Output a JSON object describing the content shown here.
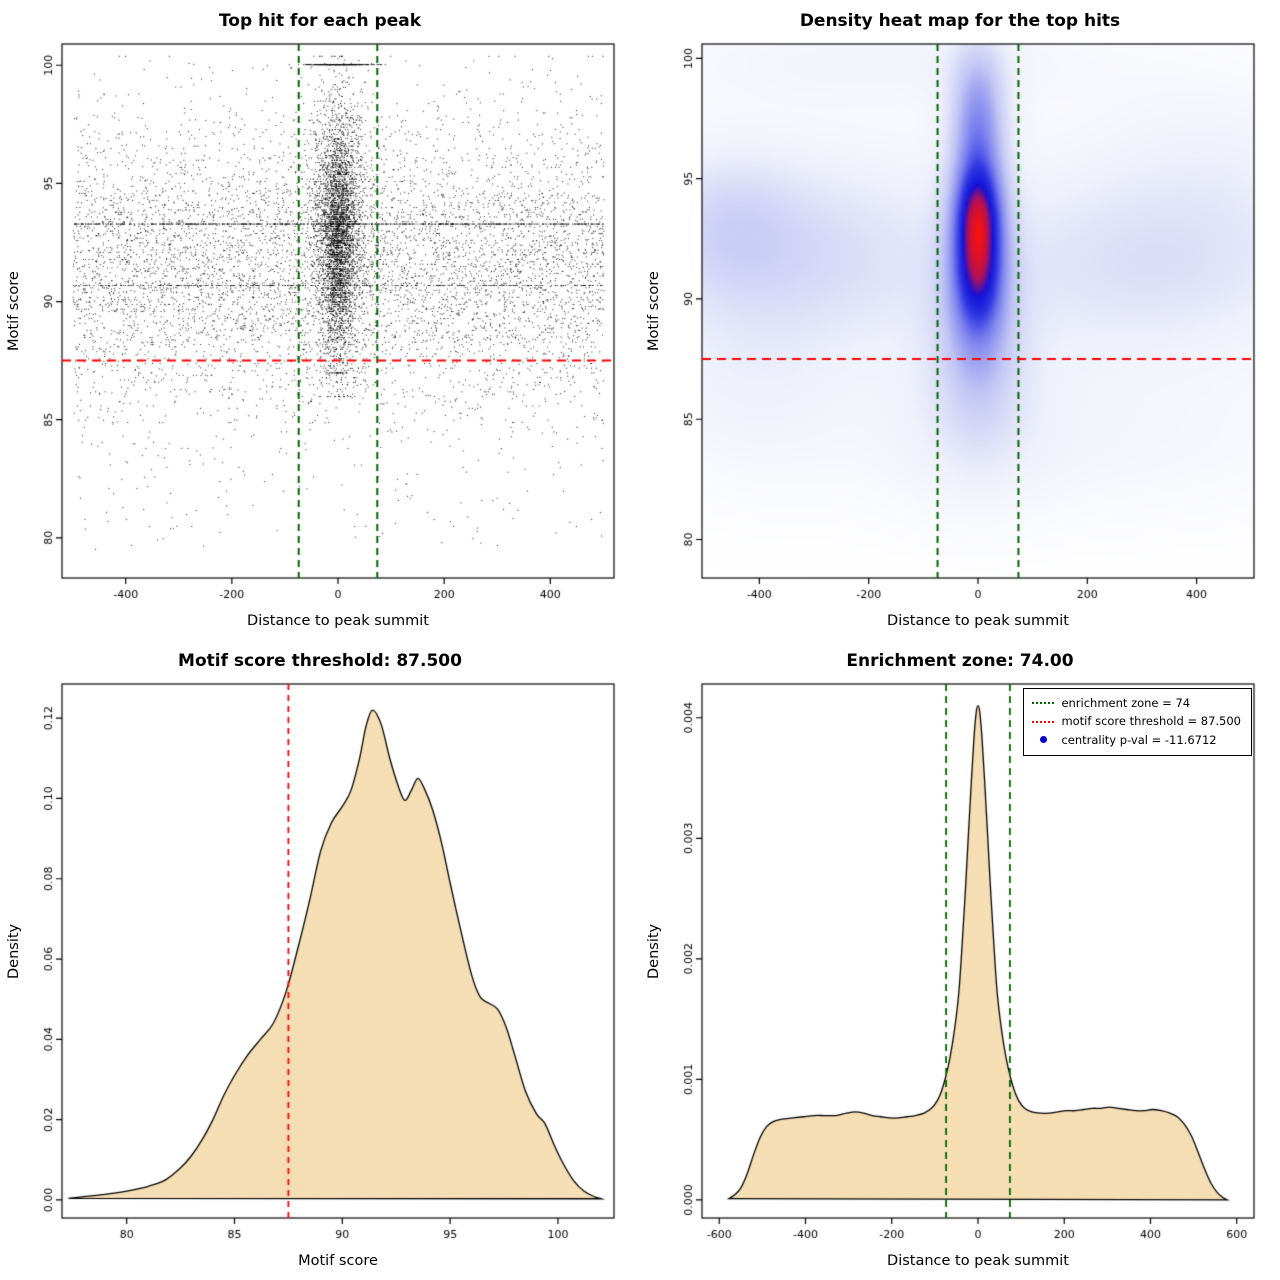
{
  "page": {
    "background": "#ffffff"
  },
  "chart_data": [
    {
      "id": "top-hit-scatter",
      "type": "scatter",
      "title": "Top hit for each peak",
      "xlabel": "Distance to peak summit",
      "ylabel": "Motif score",
      "xlim": [
        -520,
        520
      ],
      "ylim": [
        78.3,
        100.9
      ],
      "xticks": {
        "values": [
          -400,
          -200,
          0,
          200,
          400
        ],
        "labels": [
          "-400",
          "-200",
          "0",
          "200",
          "400"
        ]
      },
      "yticks": {
        "values": [
          80,
          85,
          90,
          95,
          100
        ],
        "labels": [
          "80",
          "85",
          "90",
          "95",
          "100"
        ]
      },
      "point_color": "#000000",
      "vlines": [
        {
          "x": -74,
          "color": "#006400",
          "width": 2,
          "dash": [
            7,
            5
          ]
        },
        {
          "x": 74,
          "color": "#006400",
          "width": 2,
          "dash": [
            7,
            5
          ]
        }
      ],
      "hlines": [
        {
          "y": 87.5,
          "color": "#ff0000",
          "width": 2,
          "dash": [
            9,
            6
          ]
        }
      ],
      "generator": {
        "seed": 42,
        "background": {
          "n": 6500,
          "x_uniform": [
            -500,
            500
          ],
          "y_normal": [
            91.5,
            3.0
          ],
          "y_uniform_frac": 0.08,
          "y_uniform": [
            79.5,
            100.3
          ],
          "y_clip": [
            79.0,
            100.4
          ]
        },
        "central_band": {
          "n": 2600,
          "x_normal": [
            0,
            26
          ],
          "x_clip": [
            -85,
            85
          ],
          "y_normal": [
            93.0,
            3.0
          ],
          "y_clip": [
            86.0,
            100.4
          ]
        },
        "central_core": {
          "n": 1500,
          "x_normal": [
            0,
            13
          ],
          "x_clip": [
            -55,
            55
          ],
          "y_normal": [
            92.5,
            2.4
          ],
          "y_clip": [
            87.0,
            100.3
          ]
        },
        "score_lines": [
          {
            "y": 93.3,
            "n": 600,
            "x_uniform": [
              -500,
              500
            ]
          },
          {
            "y": 90.7,
            "n": 280,
            "x_uniform": [
              -500,
              500
            ]
          },
          {
            "y": 100.05,
            "n": 380,
            "x_normal": [
              0,
              30
            ]
          }
        ],
        "snap": {
          "prob": 0.5,
          "step": 0.1
        }
      }
    },
    {
      "id": "density-heatmap",
      "type": "heatmap",
      "title": "Density heat map for the top hits",
      "xlabel": "Distance to peak summit",
      "ylabel": "Motif score",
      "xlim": [
        -505,
        505
      ],
      "ylim": [
        78.4,
        100.6
      ],
      "xticks": {
        "values": [
          -400,
          -200,
          0,
          200,
          400
        ],
        "labels": [
          "-400",
          "-200",
          "0",
          "200",
          "400"
        ]
      },
      "yticks": {
        "values": [
          80,
          85,
          90,
          95,
          100
        ],
        "labels": [
          "80",
          "85",
          "90",
          "95",
          "100"
        ]
      },
      "grid": [
        170,
        200
      ],
      "gamma": 0.8,
      "blobs": [
        {
          "x": 0,
          "y": 93.7,
          "sx": 28,
          "sy": 1.35,
          "w": 1.0
        },
        {
          "x": 0,
          "y": 91.4,
          "sx": 30,
          "sy": 1.7,
          "w": 1.1
        },
        {
          "x": 0,
          "y": 92.5,
          "sx": 40,
          "sy": 3.8,
          "w": 0.6
        },
        {
          "x": 0,
          "y": 96.6,
          "sx": 30,
          "sy": 1.6,
          "w": 0.5
        },
        {
          "x": 0,
          "y": 98.8,
          "sx": 34,
          "sy": 1.6,
          "w": 0.33
        },
        {
          "x": 0,
          "y": 88.6,
          "sx": 55,
          "sy": 2.2,
          "w": 0.3
        },
        {
          "x": 0,
          "y": 85.5,
          "sx": 90,
          "sy": 2.5,
          "w": 0.16
        },
        {
          "x": -330,
          "y": 91.8,
          "sx": 180,
          "sy": 2.6,
          "w": 0.26
        },
        {
          "x": -460,
          "y": 93.2,
          "sx": 90,
          "sy": 2.0,
          "w": 0.22
        },
        {
          "x": 320,
          "y": 91.4,
          "sx": 200,
          "sy": 2.4,
          "w": 0.22
        },
        {
          "x": 0,
          "y": 91.6,
          "sx": 520,
          "sy": 4.0,
          "w": 0.1
        },
        {
          "x": -180,
          "y": 99.9,
          "sx": 300,
          "sy": 1.3,
          "w": 0.1
        },
        {
          "x": 150,
          "y": 84.0,
          "sx": 350,
          "sy": 2.2,
          "w": 0.08
        },
        {
          "x": -420,
          "y": 86.5,
          "sx": 120,
          "sy": 2.5,
          "w": 0.1
        },
        {
          "x": 430,
          "y": 95.5,
          "sx": 150,
          "sy": 2.5,
          "w": 0.1
        }
      ],
      "colormap": [
        [
          0.0,
          "#ffffff"
        ],
        [
          0.12,
          "#eef0fb"
        ],
        [
          0.3,
          "#c3c7f4"
        ],
        [
          0.5,
          "#7b81ee"
        ],
        [
          0.65,
          "#3036e4"
        ],
        [
          0.78,
          "#1212d8"
        ],
        [
          0.88,
          "#b0115a"
        ],
        [
          1.0,
          "#f31111"
        ]
      ],
      "vlines": [
        {
          "x": -74,
          "color": "#006400",
          "width": 2,
          "dash": [
            7,
            5
          ]
        },
        {
          "x": 74,
          "color": "#006400",
          "width": 2,
          "dash": [
            7,
            5
          ]
        }
      ],
      "hlines": [
        {
          "y": 87.5,
          "color": "#ff0000",
          "width": 2,
          "dash": [
            9,
            6
          ]
        }
      ]
    },
    {
      "id": "motif-score-density",
      "type": "density",
      "title": "Motif score threshold: 87.500",
      "xlabel": "Motif score",
      "ylabel": "Density",
      "xlim": [
        77,
        102.6
      ],
      "ylim": [
        -0.0045,
        0.1285
      ],
      "xticks": {
        "values": [
          80,
          85,
          90,
          95,
          100
        ],
        "labels": [
          "80",
          "85",
          "90",
          "95",
          "100"
        ]
      },
      "yticks": {
        "values": [
          0,
          0.02,
          0.04,
          0.06,
          0.08,
          0.1,
          0.12
        ],
        "labels": [
          "0.00",
          "0.02",
          "0.04",
          "0.06",
          "0.08",
          "0.10",
          "0.12"
        ]
      },
      "fill": "#f5deb3",
      "line_color": "#000000",
      "points": [
        [
          77.3,
          0.0004
        ],
        [
          78,
          0.0008
        ],
        [
          79,
          0.0014
        ],
        [
          80,
          0.0022
        ],
        [
          81,
          0.0034
        ],
        [
          81.8,
          0.005
        ],
        [
          82.5,
          0.008
        ],
        [
          83,
          0.011
        ],
        [
          83.5,
          0.015
        ],
        [
          84,
          0.02
        ],
        [
          84.5,
          0.026
        ],
        [
          85,
          0.031
        ],
        [
          85.6,
          0.036
        ],
        [
          86.2,
          0.04
        ],
        [
          86.8,
          0.044
        ],
        [
          87.4,
          0.052
        ],
        [
          88,
          0.064
        ],
        [
          88.5,
          0.075
        ],
        [
          89,
          0.087
        ],
        [
          89.5,
          0.094
        ],
        [
          90,
          0.098
        ],
        [
          90.4,
          0.102
        ],
        [
          90.8,
          0.11
        ],
        [
          91.1,
          0.118
        ],
        [
          91.4,
          0.122
        ],
        [
          91.8,
          0.1185
        ],
        [
          92.2,
          0.11
        ],
        [
          92.6,
          0.103
        ],
        [
          92.9,
          0.0995
        ],
        [
          93.2,
          0.102
        ],
        [
          93.5,
          0.105
        ],
        [
          93.8,
          0.1025
        ],
        [
          94.2,
          0.097
        ],
        [
          94.6,
          0.089
        ],
        [
          95,
          0.079
        ],
        [
          95.5,
          0.067
        ],
        [
          96,
          0.056
        ],
        [
          96.4,
          0.0505
        ],
        [
          96.8,
          0.049
        ],
        [
          97.2,
          0.0475
        ],
        [
          97.6,
          0.043
        ],
        [
          98,
          0.036
        ],
        [
          98.5,
          0.027
        ],
        [
          99,
          0.0215
        ],
        [
          99.4,
          0.019
        ],
        [
          99.8,
          0.014
        ],
        [
          100.2,
          0.0095
        ],
        [
          100.7,
          0.005
        ],
        [
          101.2,
          0.0022
        ],
        [
          101.7,
          0.0008
        ],
        [
          102,
          0.0003
        ]
      ],
      "vlines": [
        {
          "x": 87.5,
          "color": "#ff0000",
          "width": 1.8,
          "dash": [
            6,
            5
          ]
        }
      ],
      "hlines": []
    },
    {
      "id": "enrichment-zone-density",
      "type": "density",
      "title": "Enrichment zone: 74.00",
      "xlabel": "Distance to peak summit",
      "ylabel": "Density",
      "xlim": [
        -640,
        640
      ],
      "ylim": [
        -0.00015,
        0.00428
      ],
      "xticks": {
        "values": [
          -600,
          -400,
          -200,
          0,
          200,
          400,
          600
        ],
        "labels": [
          "-600",
          "-400",
          "-200",
          "0",
          "200",
          "400",
          "600"
        ]
      },
      "yticks": {
        "values": [
          0,
          0.001,
          0.002,
          0.003,
          0.004
        ],
        "labels": [
          "0.000",
          "0.001",
          "0.002",
          "0.003",
          "0.004"
        ]
      },
      "fill": "#f5deb3",
      "line_color": "#000000",
      "points": [
        [
          -578,
          1e-05
        ],
        [
          -565,
          4e-05
        ],
        [
          -550,
          0.0001
        ],
        [
          -535,
          0.00022
        ],
        [
          -520,
          0.00038
        ],
        [
          -505,
          0.00052
        ],
        [
          -490,
          0.00061
        ],
        [
          -475,
          0.00065
        ],
        [
          -455,
          0.00067
        ],
        [
          -430,
          0.00068
        ],
        [
          -405,
          0.00069
        ],
        [
          -380,
          0.0007
        ],
        [
          -355,
          0.0007
        ],
        [
          -330,
          0.0007
        ],
        [
          -305,
          0.00072
        ],
        [
          -285,
          0.00073
        ],
        [
          -265,
          0.00072
        ],
        [
          -245,
          0.0007
        ],
        [
          -225,
          0.00069
        ],
        [
          -205,
          0.00068
        ],
        [
          -185,
          0.00068
        ],
        [
          -165,
          0.00069
        ],
        [
          -145,
          0.0007
        ],
        [
          -125,
          0.00072
        ],
        [
          -108,
          0.00076
        ],
        [
          -95,
          0.00082
        ],
        [
          -85,
          0.0009
        ],
        [
          -75,
          0.00102
        ],
        [
          -65,
          0.00118
        ],
        [
          -55,
          0.0014
        ],
        [
          -45,
          0.0017
        ],
        [
          -38,
          0.00205
        ],
        [
          -30,
          0.00252
        ],
        [
          -22,
          0.00305
        ],
        [
          -15,
          0.0035
        ],
        [
          -9,
          0.00385
        ],
        [
          -4,
          0.00405
        ],
        [
          0,
          0.0041
        ],
        [
          4,
          0.00405
        ],
        [
          9,
          0.00385
        ],
        [
          15,
          0.0035
        ],
        [
          22,
          0.00305
        ],
        [
          30,
          0.00252
        ],
        [
          38,
          0.00205
        ],
        [
          45,
          0.0017
        ],
        [
          55,
          0.0014
        ],
        [
          65,
          0.00118
        ],
        [
          75,
          0.00102
        ],
        [
          85,
          0.0009
        ],
        [
          95,
          0.00082
        ],
        [
          108,
          0.00076
        ],
        [
          125,
          0.00073
        ],
        [
          145,
          0.00072
        ],
        [
          165,
          0.00072
        ],
        [
          185,
          0.00073
        ],
        [
          205,
          0.00074
        ],
        [
          225,
          0.00074
        ],
        [
          245,
          0.00075
        ],
        [
          265,
          0.00076
        ],
        [
          285,
          0.00076
        ],
        [
          305,
          0.00077
        ],
        [
          325,
          0.00076
        ],
        [
          345,
          0.00075
        ],
        [
          365,
          0.00074
        ],
        [
          385,
          0.00074
        ],
        [
          405,
          0.00075
        ],
        [
          425,
          0.00074
        ],
        [
          445,
          0.00072
        ],
        [
          462,
          0.00069
        ],
        [
          478,
          0.00063
        ],
        [
          495,
          0.00053
        ],
        [
          510,
          0.0004
        ],
        [
          525,
          0.00026
        ],
        [
          540,
          0.00014
        ],
        [
          555,
          6e-05
        ],
        [
          568,
          2e-05
        ],
        [
          578,
          0
        ]
      ],
      "vlines": [
        {
          "x": -74,
          "color": "#006400",
          "width": 1.8,
          "dash": [
            7,
            5
          ]
        },
        {
          "x": 74,
          "color": "#006400",
          "width": 1.8,
          "dash": [
            7,
            5
          ]
        }
      ],
      "hlines": [],
      "legend": [
        {
          "type": "line",
          "color": "#006400",
          "label": "enrichment zone = 74"
        },
        {
          "type": "line",
          "color": "#ff0000",
          "label": "motif score threshold = 87.500"
        },
        {
          "type": "point",
          "color": "#0000cd",
          "label": "centrality p-val = -11.6712"
        }
      ]
    }
  ]
}
